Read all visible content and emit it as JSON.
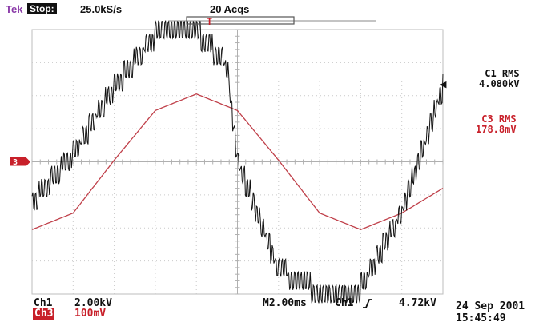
{
  "header": {
    "brand": "Tek",
    "state": "Stop:",
    "sample_rate": "25.0kS/s",
    "acqs": "20 Acqs",
    "trigger_pos_marker": "T"
  },
  "measurements": {
    "c1_label": "C1 RMS",
    "c1_value": "4.080kV",
    "c3_label": "C3 RMS",
    "c3_value": "178.8mV"
  },
  "footer": {
    "ch1": "Ch1",
    "ch1_scale": "2.00kV",
    "ch3": "Ch3",
    "ch3_scale": "100mV",
    "timebase": "M2.00ms",
    "trigger_source": "Ch1",
    "trigger_slope_icon": "rising-edge-icon",
    "trigger_level": "4.72kV",
    "date": "24 Sep 2001",
    "time": "15:45:49"
  },
  "chart_data": {
    "type": "line",
    "xlabel": "",
    "ylabel": "",
    "x_unit": "ms",
    "xlim": [
      -10,
      10
    ],
    "grid": true,
    "grid_divisions": {
      "horizontal": 10,
      "vertical": 8
    },
    "series": [
      {
        "channel": "Ch1",
        "color": "#111111",
        "volts_per_div": "2.00kV",
        "x": [
          -10,
          -8,
          -6,
          -4,
          -2,
          -0.5,
          0,
          2,
          4,
          6,
          8,
          10
        ],
        "y": [
          -2.5,
          0.5,
          4.5,
          7.7,
          7.9,
          5.8,
          0,
          -6.5,
          -7.9,
          -7.6,
          -3.0,
          4.5
        ],
        "unit": "kV"
      },
      {
        "channel": "Ch3",
        "color": "#c0404a",
        "volts_per_div": "100mV",
        "x": [
          -10,
          -8,
          -6,
          -4,
          -2,
          0,
          2,
          4,
          6,
          8,
          10
        ],
        "y": [
          -205,
          -155,
          5,
          155,
          205,
          155,
          5,
          -155,
          -205,
          -155,
          -80
        ],
        "unit": "mV"
      }
    ],
    "markers": {
      "ch3_ground_label": "3",
      "trigger_arrow": "◀"
    }
  }
}
